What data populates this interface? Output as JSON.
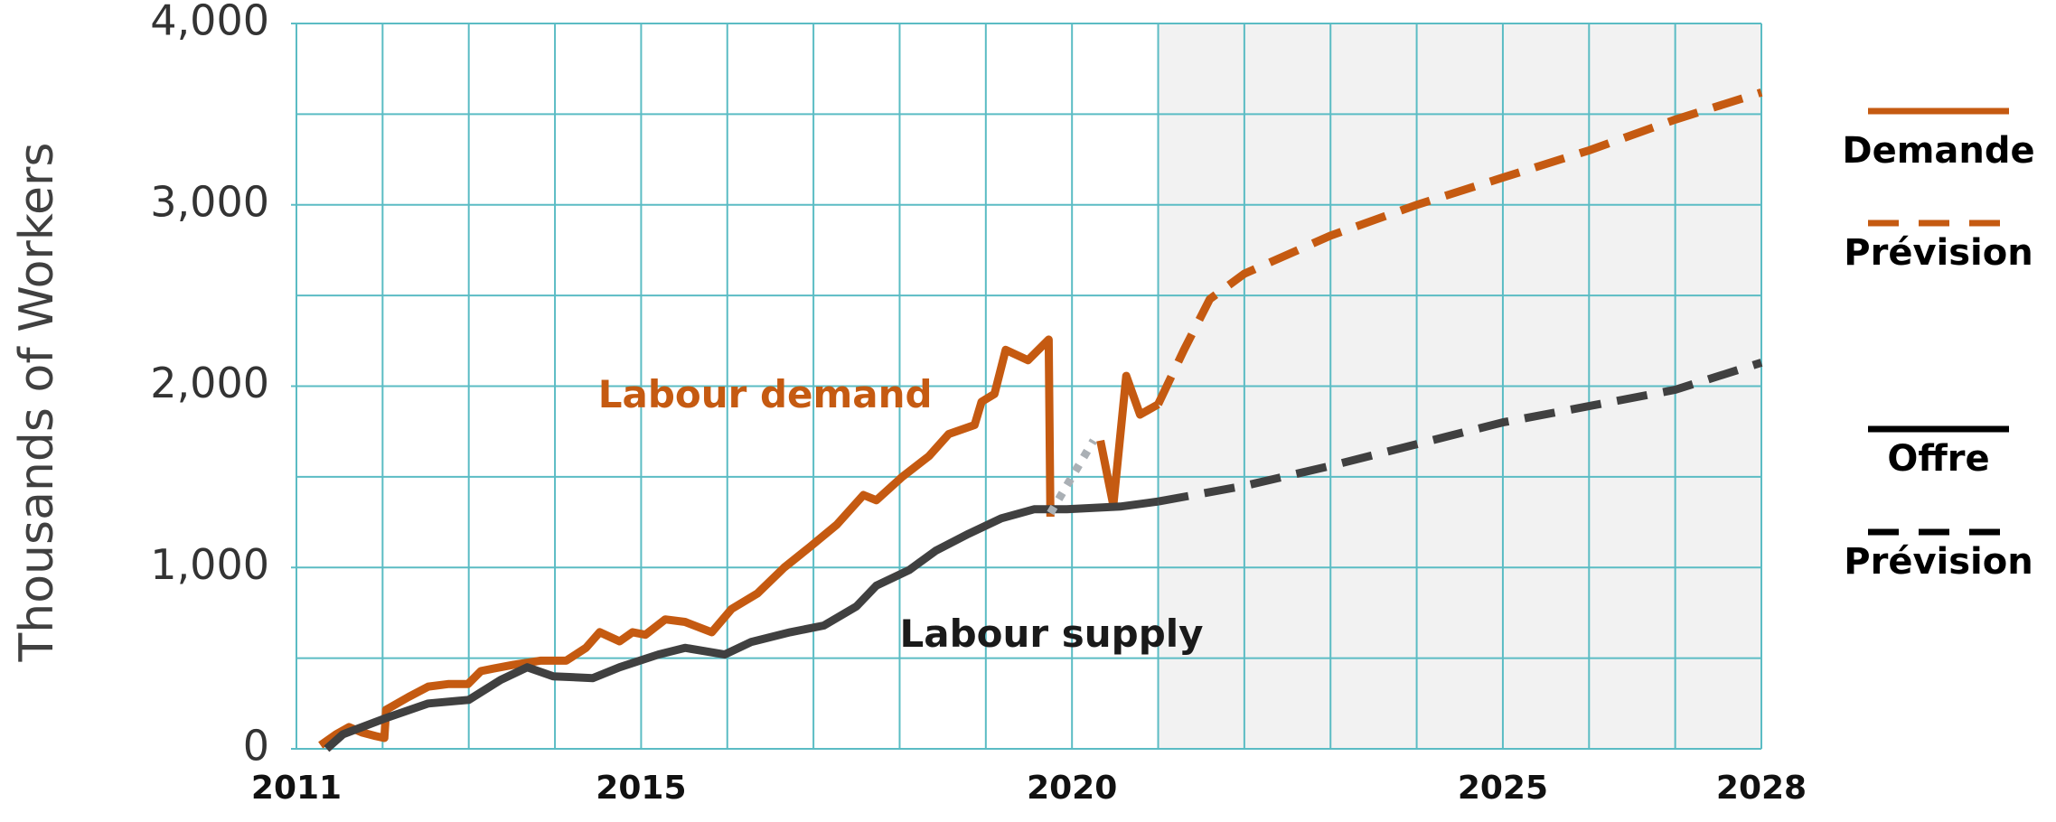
{
  "chart_data": {
    "type": "line",
    "y_label": "Thousands of Workers",
    "annotations": [
      {
        "text": "Labour demand",
        "x": 2014.5,
        "y": 1940,
        "color": "#c55a11"
      },
      {
        "text": "Labour supply",
        "x": 2018.0,
        "y": 620,
        "color": "#1a1a1a"
      }
    ],
    "xlim": [
      2011,
      2028
    ],
    "xticks": [
      2011,
      2015,
      2020,
      2025,
      2028
    ],
    "xgridlines": [
      2011,
      2012,
      2013,
      2014,
      2015,
      2016,
      2017,
      2018,
      2019,
      2020,
      2021,
      2022,
      2023,
      2024,
      2025,
      2026,
      2027,
      2028
    ],
    "ylim": [
      0,
      4000
    ],
    "yticks": [
      0,
      {
        "value": 1000,
        "label": "1,000"
      },
      {
        "value": 2000,
        "label": "2,000"
      },
      {
        "value": 3000,
        "label": "3,000"
      },
      {
        "value": 4000,
        "label": "4,000"
      }
    ],
    "ygridlines": [
      500,
      1000,
      1500,
      2000,
      2500,
      3000,
      3500,
      4000
    ],
    "grid_color": "#5bbcc4",
    "forecast_start": 2021,
    "forecast_shade": "#f2f2f2",
    "legend": "right",
    "series": [
      {
        "name": "Demande",
        "color": "#c55a11",
        "dash": "solid",
        "x": [
          2011.28,
          2011.46,
          2011.61,
          2011.76,
          2011.92,
          2012.02,
          2012.04,
          2012.3,
          2012.53,
          2012.76,
          2012.99,
          2013.14,
          2013.29,
          2013.52,
          2013.83,
          2014.13,
          2014.36,
          2014.52,
          2014.75,
          2014.9,
          2015.05,
          2015.28,
          2015.51,
          2015.82,
          2016.05,
          2016.35,
          2016.66,
          2016.96,
          2017.27,
          2017.58,
          2017.73,
          2018.03,
          2018.34,
          2018.57,
          2018.87,
          2018.95,
          2019.1,
          2019.23,
          2019.49,
          2019.73,
          2019.75,
          null,
          2020.33,
          2020.48,
          2020.63,
          2020.79,
          2021.0
        ],
        "values": [
          20,
          80,
          120,
          90,
          70,
          60,
          215,
          286,
          343,
          357,
          357,
          429,
          443,
          464,
          486,
          486,
          557,
          643,
          593,
          643,
          629,
          714,
          700,
          643,
          771,
          857,
          1000,
          1114,
          1236,
          1400,
          1371,
          1500,
          1614,
          1736,
          1786,
          1914,
          1957,
          2200,
          2143,
          2257,
          1280,
          null,
          1700,
          1343,
          2057,
          1843,
          1900
        ]
      },
      {
        "name": "Prévision",
        "color": "#c55a11",
        "dash": "dashed",
        "x": [
          2021,
          2021.3,
          2021.6,
          2022,
          2023,
          2024,
          2025,
          2026,
          2027,
          2028
        ],
        "values": [
          1900,
          2200,
          2480,
          2620,
          2830,
          3000,
          3150,
          3300,
          3470,
          3620
        ]
      },
      {
        "name": "Offre",
        "color": "#404040",
        "dash": "solid",
        "x": [
          2011.35,
          2011.54,
          2012.01,
          2012.53,
          2013.0,
          2013.37,
          2013.68,
          2013.98,
          2014.44,
          2014.75,
          2015.2,
          2015.51,
          2015.97,
          2016.28,
          2016.73,
          2017.12,
          2017.5,
          2017.73,
          2018.11,
          2018.42,
          2018.8,
          2019.18,
          2019.56,
          2019.94,
          2020.56,
          2021.0
        ],
        "values": [
          0,
          80,
          165,
          250,
          270,
          380,
          450,
          400,
          390,
          450,
          520,
          557,
          520,
          590,
          643,
          680,
          786,
          900,
          986,
          1093,
          1186,
          1271,
          1321,
          1321,
          1336,
          1364
        ]
      },
      {
        "name": "Prévision",
        "color": "#404040",
        "dash": "dashed",
        "x": [
          2021,
          2022,
          2023,
          2024,
          2025,
          2026,
          2027,
          2028
        ],
        "values": [
          1364,
          1450,
          1560,
          1680,
          1800,
          1890,
          1980,
          2130
        ]
      },
      {
        "color": "#aab0b5",
        "dash": "dotted",
        "x": [
          2019.75,
          2020.25
        ],
        "values": [
          1300,
          1700
        ]
      }
    ]
  }
}
